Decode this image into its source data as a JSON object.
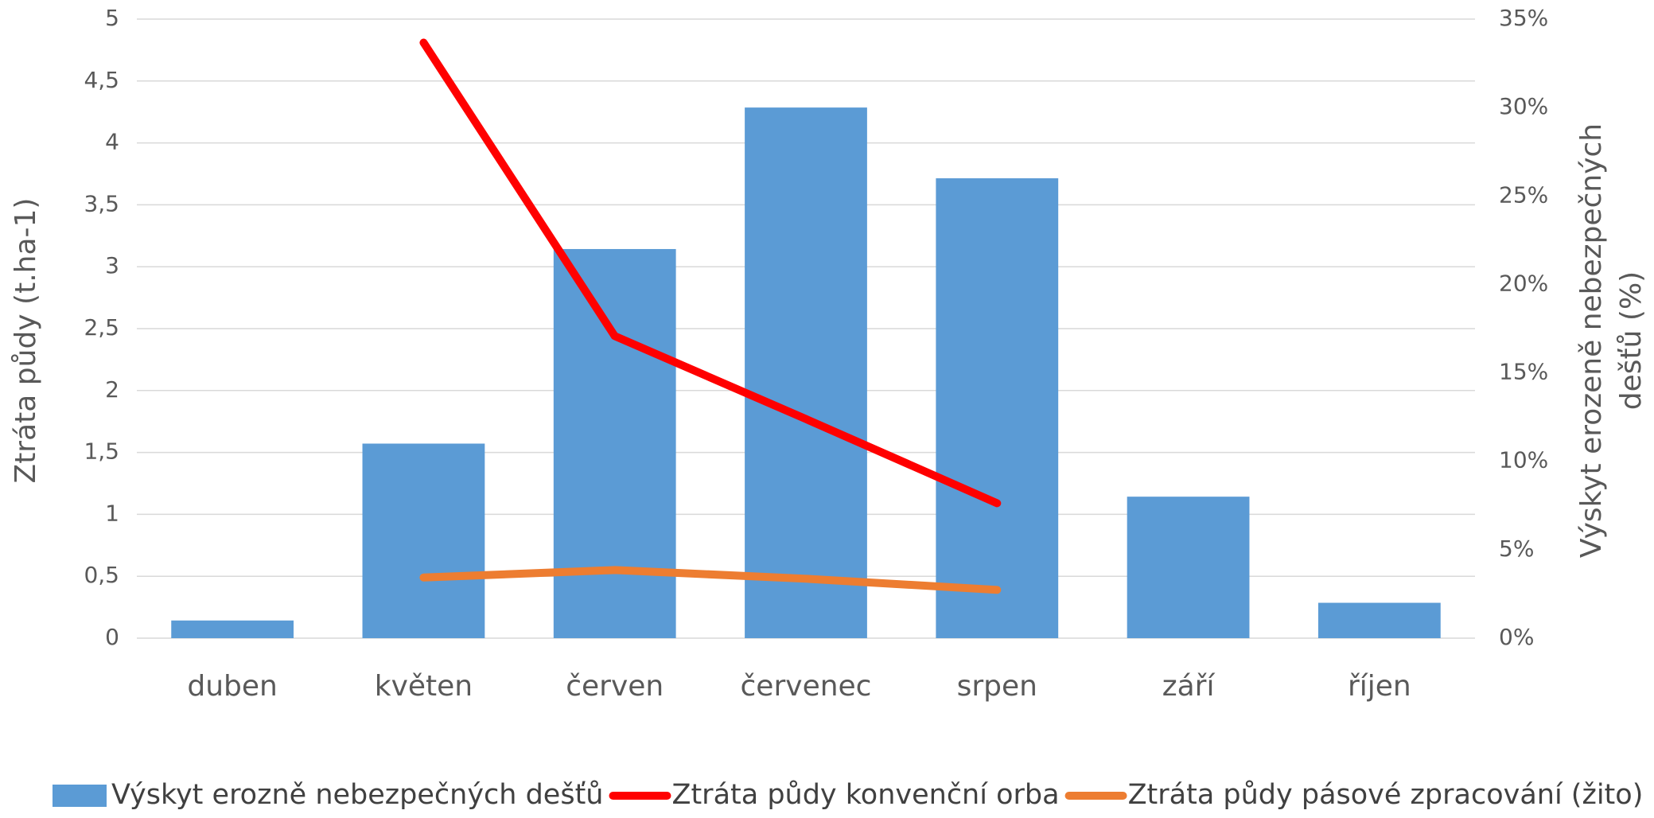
{
  "chart_data": {
    "type": "bar",
    "categories": [
      "duben",
      "květen",
      "červen",
      "červenec",
      "srpen",
      "září",
      "říjen"
    ],
    "series": [
      {
        "name": "Výskyt erozně nebezpečných dešťů",
        "type": "bar",
        "axis": "y2",
        "color": "#5b9bd5",
        "values": [
          1,
          11,
          22,
          30,
          26,
          8,
          2
        ]
      },
      {
        "name": "Ztráta půdy konvenční orba",
        "type": "line",
        "color": "#ff0000",
        "values": [
          null,
          4.81,
          2.44,
          1.77,
          1.09,
          null,
          null
        ]
      },
      {
        "name": "Ztráta půdy pásové zpracování (žito)",
        "type": "line",
        "color": "#ed7d31",
        "values": [
          null,
          0.49,
          0.55,
          0.48,
          0.39,
          null,
          null
        ]
      }
    ],
    "ylabel": "Ztráta půdy  (t.ha-1)",
    "y2label": [
      "Výskyt erozeně nebezpečných",
      "dešťů (%)"
    ],
    "ylim": [
      0,
      5
    ],
    "yticks": [
      0,
      {
        "value": 0.5,
        "label": "0,5"
      },
      1,
      {
        "value": 1.5,
        "label": "1,5"
      },
      2,
      {
        "value": 2.5,
        "label": "2,5"
      },
      3,
      {
        "value": 3.5,
        "label": "3,5"
      },
      4,
      {
        "value": 4.5,
        "label": "4,5"
      },
      5
    ],
    "y2lim": [
      0,
      35
    ],
    "y2ticks": [
      {
        "value": 0,
        "label": "0%"
      },
      {
        "value": 5,
        "label": "5%"
      },
      {
        "value": 10,
        "label": "10%"
      },
      {
        "value": 15,
        "label": "15%"
      },
      {
        "value": 20,
        "label": "20%"
      },
      {
        "value": 25,
        "label": "25%"
      },
      {
        "value": 30,
        "label": "30%"
      },
      {
        "value": 35,
        "label": "35%"
      }
    ],
    "grid": true,
    "legend": "bottom"
  }
}
